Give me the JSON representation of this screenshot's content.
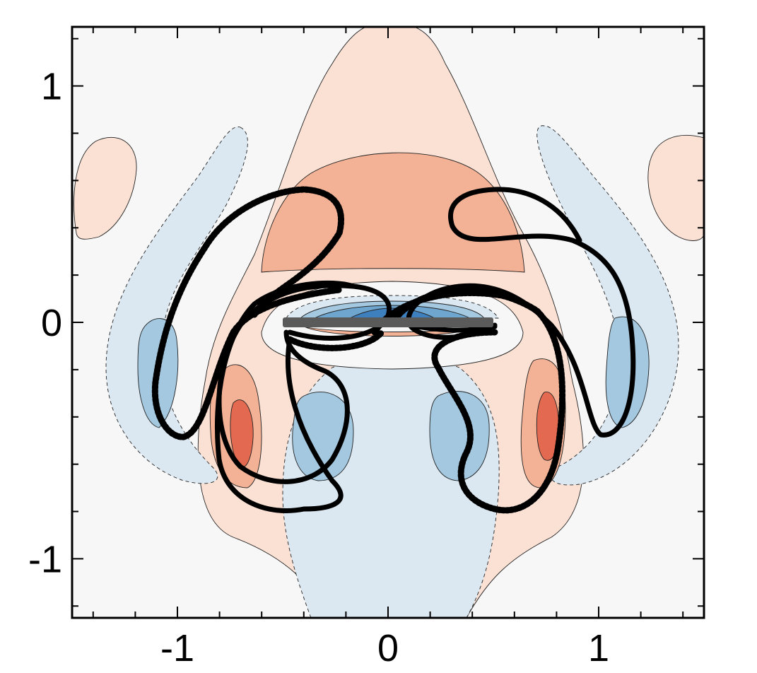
{
  "chart_data": {
    "type": "contour",
    "title": "",
    "xlabel": "",
    "ylabel": "",
    "xlim": [
      -1.5,
      1.5
    ],
    "ylim": [
      -1.25,
      1.25
    ],
    "x_ticks": [
      {
        "value": -1,
        "label": "-1"
      },
      {
        "value": 0,
        "label": "0"
      },
      {
        "value": 1,
        "label": "1"
      }
    ],
    "y_ticks": [
      {
        "value": 1,
        "label": "1"
      },
      {
        "value": 0,
        "label": "0"
      },
      {
        "value": -1,
        "label": "-1"
      }
    ],
    "minor_step": 0.2,
    "grid": false,
    "plate": {
      "x": [
        -0.5,
        0.5
      ],
      "y": 0.0,
      "color": "#5a5a5a"
    },
    "colors": {
      "background": "#f7f7f7",
      "pos_1": "#fbe1d4",
      "pos_2": "#f3b195",
      "pos_3": "#e36a50",
      "neg_1": "#dbe8f2",
      "neg_2": "#a3c8e0",
      "neg_3": "#6fa6cf",
      "neg_4": "#3e7fbd"
    }
  }
}
